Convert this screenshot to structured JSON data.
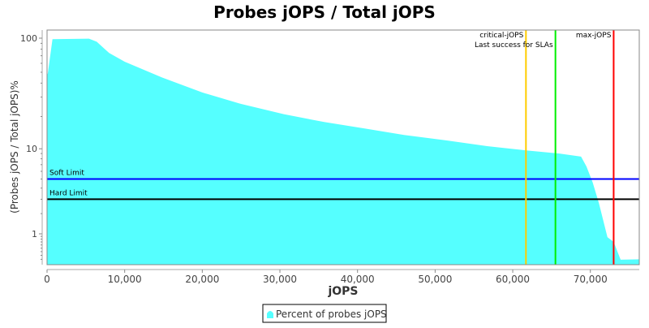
{
  "chart_data": {
    "type": "area",
    "title": "Probes jOPS / Total jOPS",
    "xlabel": "jOPS",
    "ylabel": "(Probes jOPS / Total jOPS)%",
    "xlim": [
      0,
      76300
    ],
    "ylim": [
      0.08,
      110
    ],
    "yscale": "log",
    "x_ticks": [
      0,
      10000,
      20000,
      30000,
      40000,
      50000,
      60000,
      70000
    ],
    "x_tick_labels": [
      "0",
      "10,000",
      "20,000",
      "30,000",
      "40,000",
      "50,000",
      "60,000",
      "70,000"
    ],
    "y_ticks": [
      1,
      10,
      100
    ],
    "y_tick_labels": [
      "1",
      "10",
      "100"
    ],
    "grid": false,
    "legend_position": "bottom",
    "series": [
      {
        "name": "Percent of probes jOPS",
        "color": "#55ffff",
        "x": [
          0,
          100,
          700,
          5400,
          6400,
          8000,
          10000,
          14800,
          20000,
          25000,
          30500,
          35700,
          41000,
          46000,
          51500,
          56700,
          62000,
          66000,
          68800,
          69500,
          70300,
          71100,
          72200,
          73000,
          73900,
          76300
        ],
        "y": [
          47,
          49,
          98,
          99,
          93,
          74,
          62,
          45,
          33,
          26,
          21,
          17.8,
          15.5,
          13.5,
          12,
          10.6,
          9.6,
          9,
          8.4,
          6.7,
          4.6,
          2.7,
          0.87,
          0.7,
          0.19,
          0.2
        ]
      }
    ],
    "horizontal_lines": [
      {
        "label": "Soft Limit",
        "value": 5,
        "color": "#0000ff"
      },
      {
        "label": "Hard Limit",
        "value": 3,
        "color": "#000000"
      }
    ],
    "vertical_lines": [
      {
        "label": "critical-jOPS",
        "value": 61700,
        "color": "#ffcc00"
      },
      {
        "label": "Last success for SLAs",
        "value": 65500,
        "color": "#00ee00"
      },
      {
        "label": "max-jOPS",
        "value": 73000,
        "color": "#ff0000"
      }
    ]
  }
}
